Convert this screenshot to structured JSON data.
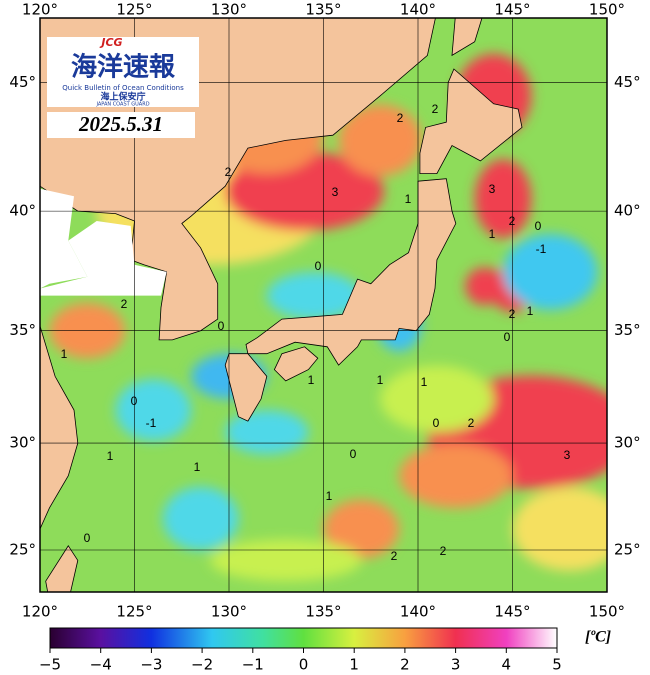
{
  "logo": {
    "acronym": "JCG",
    "title": "海洋速報",
    "subtitle": "Quick Bulletin of Ocean Conditions",
    "org_ja": "海上保安庁",
    "org_en": "JAPAN COAST GUARD"
  },
  "date": "2025.5.31",
  "map": {
    "lon_ticks": [
      {
        "value": 120,
        "label": "120°"
      },
      {
        "value": 125,
        "label": "125°"
      },
      {
        "value": 130,
        "label": "130°"
      },
      {
        "value": 135,
        "label": "135°"
      },
      {
        "value": 140,
        "label": "140°"
      },
      {
        "value": 145,
        "label": "145°"
      },
      {
        "value": 150,
        "label": "150°"
      }
    ],
    "lat_ticks": [
      {
        "value": 25,
        "label": "25°"
      },
      {
        "value": 30,
        "label": "30°"
      },
      {
        "value": 35,
        "label": "35°"
      },
      {
        "value": 40,
        "label": "40°"
      },
      {
        "value": 45,
        "label": "45°"
      }
    ],
    "contour_labels": [
      "2",
      "2",
      "3",
      "2",
      "1",
      "3",
      "2",
      "0",
      "-1",
      "1",
      "2",
      "1",
      "0",
      "-1",
      "1",
      "0",
      "0",
      "2",
      "1",
      "0",
      "1",
      "1",
      "1",
      "0",
      "2",
      "0",
      "3",
      "1",
      "0",
      "2",
      "2",
      "1"
    ]
  },
  "colorbar": {
    "ticks": [
      {
        "value": -5,
        "label": "−5"
      },
      {
        "value": -4,
        "label": "−4"
      },
      {
        "value": -3,
        "label": "−3"
      },
      {
        "value": -2,
        "label": "−2"
      },
      {
        "value": -1,
        "label": "−1"
      },
      0,
      1,
      2,
      3,
      4,
      5
    ],
    "unit": "[ºC]"
  }
}
